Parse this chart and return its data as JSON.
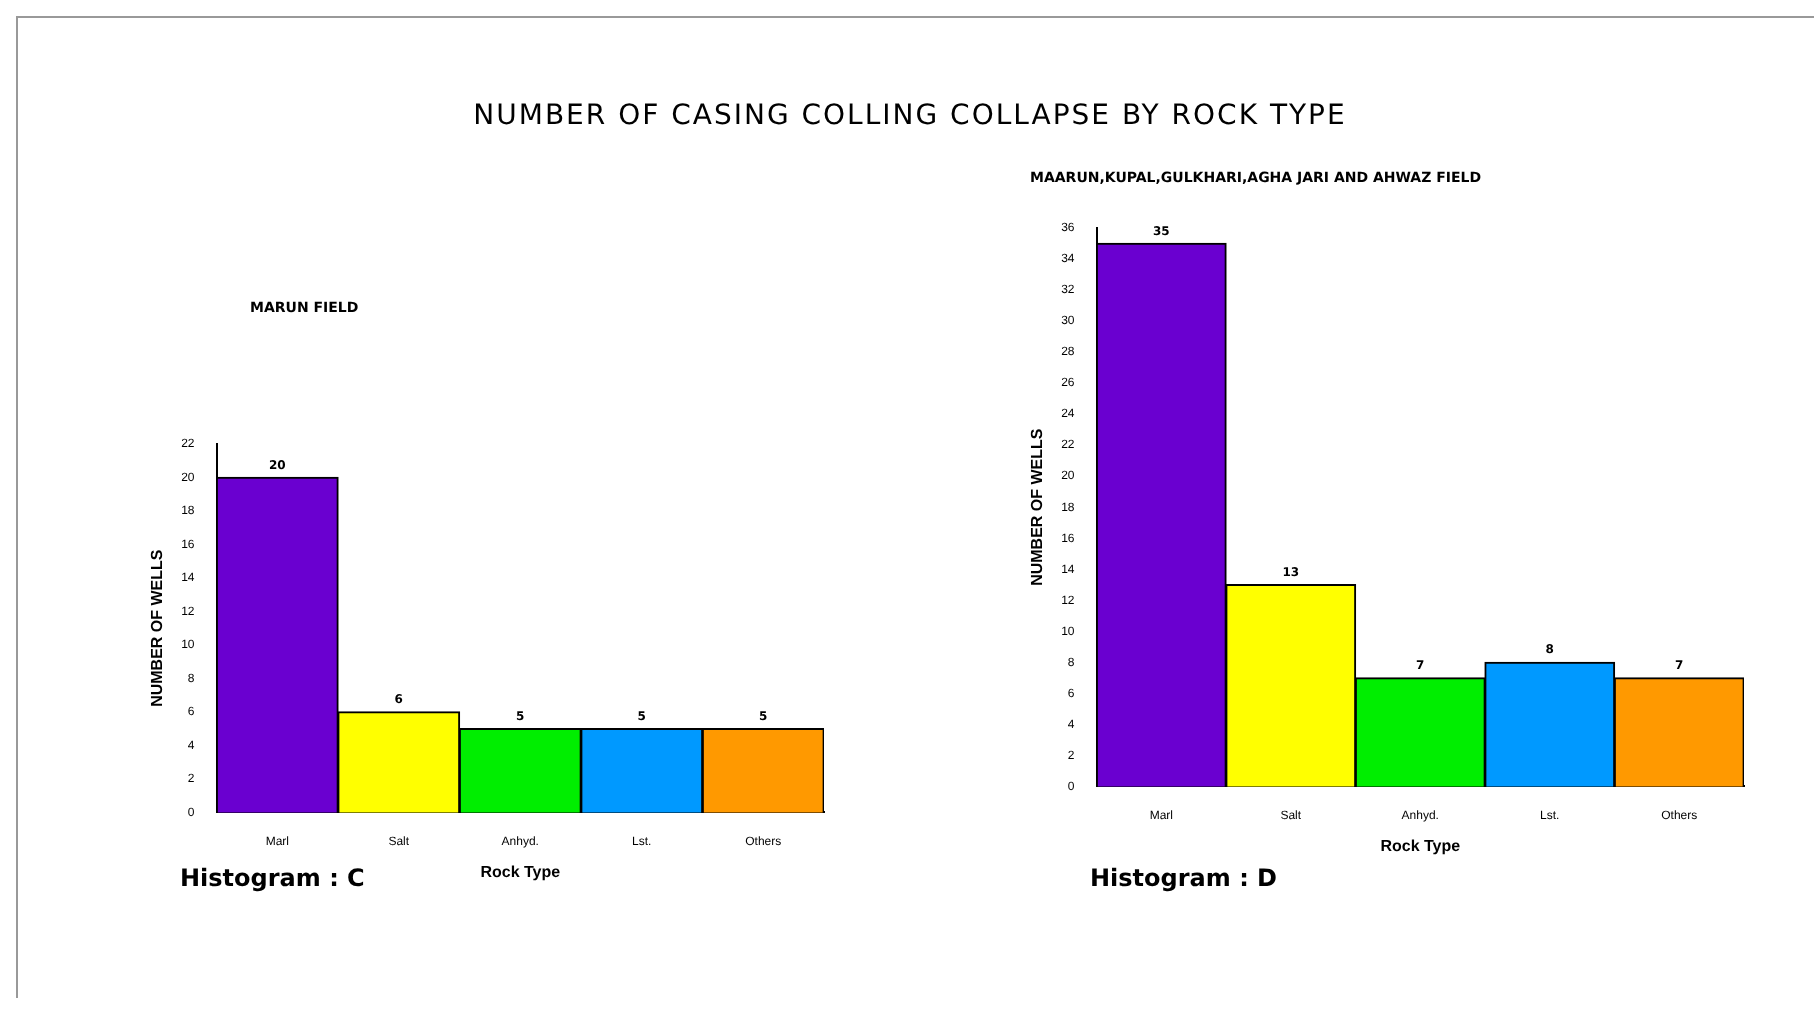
{
  "chart_data": [
    {
      "type": "bar",
      "title": "NUMBER OF CASING COLLING COLLAPSE BY ROCK TYPE",
      "subtitle": "MARUN FIELD",
      "xlabel": "Rock Type",
      "ylabel": "NUMBER OF WELLS",
      "categories": [
        "Marl",
        "Salt",
        "Anhyd.",
        "Lst.",
        "Others"
      ],
      "values": [
        20,
        6,
        5,
        5,
        5
      ],
      "colors": [
        "#6a00d0",
        "#ffff00",
        "#00ee00",
        "#0099ff",
        "#ff9900"
      ],
      "ylim": [
        0,
        22
      ],
      "yticks": [
        0,
        2,
        4,
        6,
        8,
        10,
        12,
        14,
        16,
        18,
        20,
        22
      ],
      "data_labels": true,
      "grid": false,
      "legend": false,
      "annotations": [
        "Histogram : C"
      ]
    },
    {
      "type": "bar",
      "subtitle": "MAARUN,KUPAL,GULKHARI,AGHA JARI AND AHWAZ FIELD",
      "xlabel": "Rock Type",
      "ylabel": "NUMBER OF WELLS",
      "categories": [
        "Marl",
        "Salt",
        "Anhyd.",
        "Lst.",
        "Others"
      ],
      "values": [
        35,
        13,
        7,
        8,
        7
      ],
      "colors": [
        "#6a00d0",
        "#ffff00",
        "#00ee00",
        "#0099ff",
        "#ff9900"
      ],
      "ylim": [
        0,
        36
      ],
      "yticks": [
        0,
        2,
        4,
        6,
        8,
        10,
        12,
        14,
        16,
        18,
        20,
        22,
        24,
        26,
        28,
        30,
        32,
        34,
        36
      ],
      "data_labels": true,
      "grid": false,
      "legend": false,
      "annotations": [
        "Histogram : D"
      ]
    }
  ]
}
